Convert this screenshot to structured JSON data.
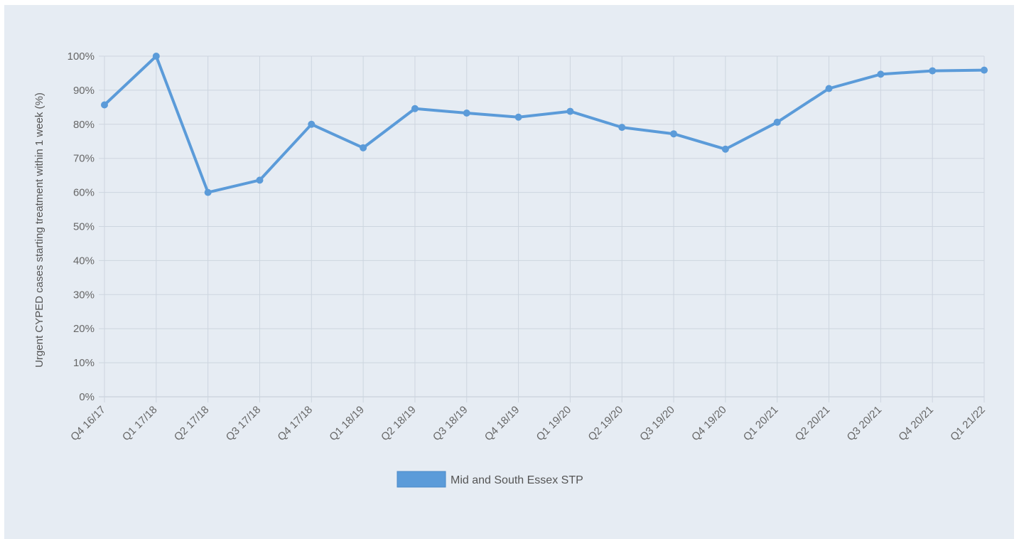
{
  "chart_data": {
    "type": "line",
    "ylabel": "Urgent CYPED cases starting treatment within 1 week (%)",
    "xlabel": "",
    "ylim": [
      0,
      100
    ],
    "ytick_step": 10,
    "ytick_labels": [
      "0%",
      "10%",
      "20%",
      "30%",
      "40%",
      "50%",
      "60%",
      "70%",
      "80%",
      "90%",
      "100%"
    ],
    "grid": true,
    "legend_position": "bottom-center",
    "categories": [
      "Q4 16/17",
      "Q1 17/18",
      "Q2 17/18",
      "Q3 17/18",
      "Q4 17/18",
      "Q1 18/19",
      "Q2 18/19",
      "Q3 18/19",
      "Q4 18/19",
      "Q1 19/20",
      "Q2 19/20",
      "Q3 19/20",
      "Q4 19/20",
      "Q1 20/21",
      "Q2 20/21",
      "Q3 20/21",
      "Q4 20/21",
      "Q1 21/22"
    ],
    "series": [
      {
        "name": "Mid and South Essex STP",
        "color": "#5b9bd9",
        "values": [
          85.7,
          100,
          60,
          63.6,
          80,
          73.1,
          84.6,
          83.3,
          82.1,
          83.8,
          79.1,
          77.2,
          72.7,
          80.6,
          90.5,
          94.7,
          95.7,
          95.9
        ]
      }
    ]
  },
  "colors": {
    "background": "#e6ecf3",
    "grid": "#cdd5df",
    "axis_text": "#666666"
  }
}
